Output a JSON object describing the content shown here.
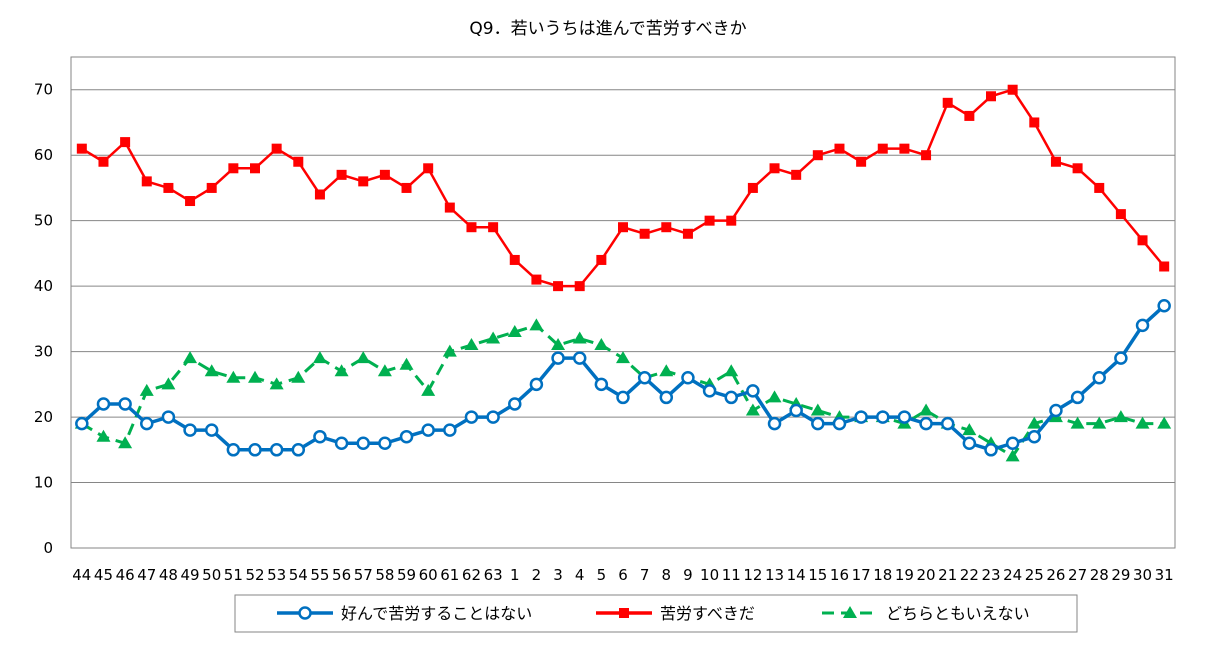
{
  "chart_data": {
    "type": "line",
    "title": "Q9．若いうちは進んで苦労すべきか",
    "xlabel": "",
    "ylabel": "",
    "ylim": [
      0,
      70
    ],
    "yticks": [
      0,
      10,
      20,
      30,
      40,
      50,
      60,
      70
    ],
    "grid": "horizontal",
    "legend_position": "bottom",
    "categories": [
      "44",
      "45",
      "46",
      "47",
      "48",
      "49",
      "50",
      "51",
      "52",
      "53",
      "54",
      "55",
      "56",
      "57",
      "58",
      "59",
      "60",
      "61",
      "62",
      "63",
      "1",
      "2",
      "3",
      "4",
      "5",
      "6",
      "7",
      "8",
      "9",
      "10",
      "11",
      "12",
      "13",
      "14",
      "15",
      "16",
      "17",
      "18",
      "19",
      "20",
      "21",
      "22",
      "23",
      "24",
      "25",
      "26",
      "27",
      "28",
      "29",
      "30",
      "31"
    ],
    "series": [
      {
        "name": "好んで苦労することはない",
        "color": "#0070C0",
        "marker": "circle",
        "line_style": "solid",
        "values": [
          19,
          22,
          22,
          19,
          20,
          18,
          18,
          15,
          15,
          15,
          15,
          17,
          16,
          16,
          16,
          17,
          18,
          18,
          20,
          20,
          22,
          25,
          29,
          29,
          25,
          23,
          26,
          23,
          26,
          24,
          23,
          24,
          19,
          21,
          19,
          19,
          20,
          20,
          20,
          19,
          19,
          16,
          15,
          16,
          17,
          21,
          23,
          26,
          29,
          34,
          37
        ]
      },
      {
        "name": "苦労すべきだ",
        "color": "#FF0000",
        "marker": "square",
        "line_style": "solid",
        "values": [
          61,
          59,
          62,
          56,
          55,
          53,
          55,
          58,
          58,
          61,
          59,
          54,
          57,
          56,
          57,
          55,
          58,
          52,
          49,
          49,
          44,
          41,
          40,
          40,
          44,
          49,
          48,
          49,
          48,
          50,
          50,
          55,
          58,
          57,
          60,
          61,
          59,
          61,
          61,
          60,
          68,
          66,
          69,
          70,
          65,
          59,
          58,
          55,
          51,
          47,
          43
        ]
      },
      {
        "name": "どちらともいえない",
        "color": "#00B050",
        "marker": "triangle",
        "line_style": "dashed",
        "values": [
          19,
          17,
          16,
          24,
          25,
          29,
          27,
          26,
          26,
          25,
          26,
          29,
          27,
          29,
          27,
          28,
          24,
          30,
          31,
          32,
          33,
          34,
          31,
          32,
          31,
          29,
          26,
          27,
          26,
          25,
          27,
          21,
          23,
          22,
          21,
          20,
          20,
          20,
          19,
          21,
          19,
          18,
          16,
          14,
          19,
          20,
          19,
          19,
          20,
          19,
          19
        ]
      }
    ]
  }
}
